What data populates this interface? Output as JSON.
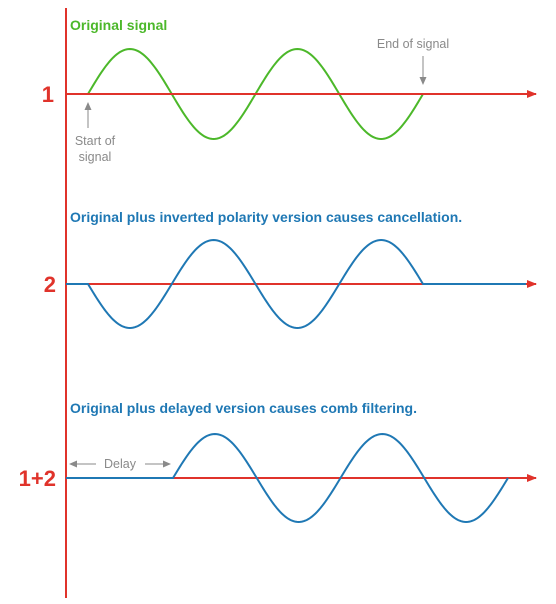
{
  "colors": {
    "axis": "#e0332b",
    "green": "#4cb82a",
    "blue": "#1f78b4",
    "note": "#8a8a8a"
  },
  "panels": [
    {
      "number": "1",
      "heading": "Original signal"
    },
    {
      "number": "2",
      "heading": "Original plus inverted polarity version causes cancellation."
    },
    {
      "number": "1+2",
      "heading": "Original plus delayed version causes comb filtering."
    }
  ],
  "annotations": {
    "start_line1": "Start of",
    "start_line2": "signal",
    "end": "End of signal",
    "delay": "Delay"
  }
}
